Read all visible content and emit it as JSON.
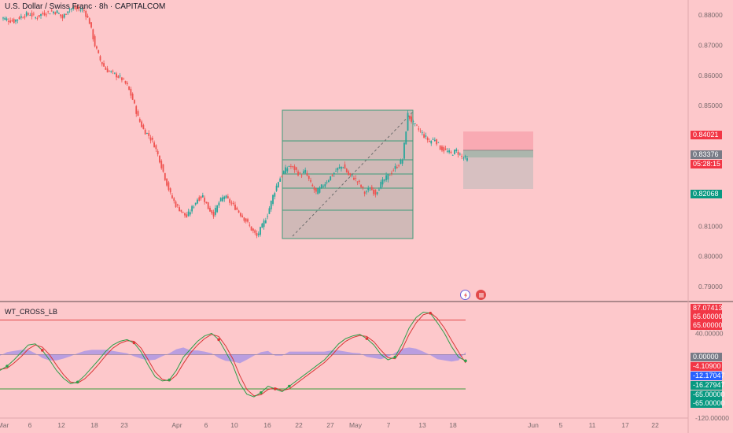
{
  "title": "U.S. Dollar / Swiss Franc · 8h · CAPITALCOM",
  "indicator_name": "WT_CROSS_LB",
  "colors": {
    "background": "#FDC8CB",
    "up": "#26A69A",
    "down": "#EF5350",
    "wt1": "#2E9E4A",
    "wt2": "#D93636",
    "hist": "#9B8BE8",
    "ob_line": "#E24A4A",
    "os_line": "#3E9B3E",
    "zone_gray": "#9AA6A0",
    "sl_zone": "#F4A7B0",
    "tp_zone": "#C9BDBE"
  },
  "price_axis": {
    "ticks": [
      "0.88000",
      "0.87000",
      "0.86000",
      "0.85000",
      "0.81000",
      "0.80000",
      "0.79000"
    ],
    "badges": [
      {
        "label": "0.84021",
        "color": "#F23645"
      },
      {
        "label": "0.83376",
        "color": "#787B86"
      },
      {
        "label": "05:28:15",
        "color": "#F23645"
      },
      {
        "label": "0.82068",
        "color": "#089981"
      }
    ]
  },
  "indicator_axis": {
    "ticks": [
      "40.00000",
      "-120.00000"
    ],
    "badges": [
      {
        "label": "87.07413",
        "color": "#F23645"
      },
      {
        "label": "65.00000",
        "color": "#F23645"
      },
      {
        "label": "65.00000",
        "color": "#F23645"
      },
      {
        "label": "0.00000",
        "color": "#787B86"
      },
      {
        "label": "-4.10900",
        "color": "#F23645"
      },
      {
        "label": "-12.17047",
        "color": "#2962FF"
      },
      {
        "label": "-16.27947",
        "color": "#089981"
      },
      {
        "label": "-65.00000",
        "color": "#089981"
      },
      {
        "label": "-65.00000",
        "color": "#089981"
      }
    ]
  },
  "time_axis": {
    "ticks": [
      "Mar",
      "6",
      "12",
      "18",
      "23",
      "Apr",
      "6",
      "10",
      "16",
      "22",
      "27",
      "May",
      "7",
      "13",
      "18",
      "Jun",
      "5",
      "11",
      "17",
      "22"
    ]
  },
  "icons": [
    "flash-icon",
    "flag-icon"
  ],
  "chart_data": {
    "type": "candlestick",
    "title": "U.S. Dollar / Swiss Franc · 8h · CAPITALCOM",
    "price_range": [
      0.785,
      0.885
    ],
    "series": [
      {
        "name": "USDCHF",
        "close_path": [
          0.879,
          0.8783,
          0.878,
          0.8792,
          0.88,
          0.8804,
          0.8791,
          0.8802,
          0.8808,
          0.8812,
          0.881,
          0.879,
          0.8818,
          0.8823,
          0.882,
          0.8815,
          0.8776,
          0.87,
          0.865,
          0.862,
          0.861,
          0.86,
          0.8588,
          0.8565,
          0.852,
          0.846,
          0.842,
          0.84,
          0.837,
          0.832,
          0.826,
          0.8205,
          0.817,
          0.815,
          0.813,
          0.816,
          0.819,
          0.82,
          0.816,
          0.814,
          0.8178,
          0.82,
          0.818,
          0.8162,
          0.814,
          0.8118,
          0.809,
          0.8066,
          0.81,
          0.814,
          0.82,
          0.825,
          0.828,
          0.83,
          0.829,
          0.827,
          0.828,
          0.824,
          0.821,
          0.823,
          0.825,
          0.827,
          0.829,
          0.83,
          0.827,
          0.826,
          0.824,
          0.821,
          0.8225,
          0.821,
          0.824,
          0.826,
          0.828,
          0.83,
          0.832,
          0.847,
          0.844,
          0.842,
          0.84,
          0.838,
          0.839,
          0.836,
          0.835,
          0.834,
          0.835,
          0.833,
          0.832
        ]
      }
    ],
    "key_levels": {
      "stop_loss": 0.84021,
      "entry": 0.83376,
      "take_profit": 0.82068
    },
    "indicator": {
      "name": "WT_CROSS_LB",
      "overbought": 65,
      "oversold": -65,
      "current": {
        "wt1": -12.17047,
        "wt2": -16.27947,
        "diff": -4.109,
        "max": 87.07413
      },
      "wt1": [
        -30,
        -22,
        -10,
        4,
        18,
        20,
        8,
        -10,
        -30,
        -45,
        -55,
        -52,
        -40,
        -25,
        -10,
        6,
        18,
        25,
        28,
        22,
        5,
        -20,
        -42,
        -50,
        -48,
        -30,
        -5,
        10,
        25,
        35,
        40,
        28,
        5,
        -20,
        -55,
        -75,
        -80,
        -72,
        -60,
        -65,
        -70,
        -60,
        -50,
        -40,
        -30,
        -20,
        -10,
        5,
        20,
        30,
        35,
        38,
        30,
        18,
        0,
        -10,
        -5,
        20,
        50,
        70,
        80,
        78,
        60,
        40,
        15,
        -5,
        -12
      ],
      "wt2": [
        -28,
        -26,
        -16,
        -4,
        10,
        18,
        14,
        0,
        -20,
        -38,
        -52,
        -54,
        -46,
        -33,
        -18,
        -2,
        12,
        21,
        26,
        25,
        12,
        -10,
        -33,
        -47,
        -50,
        -39,
        -17,
        3,
        18,
        30,
        38,
        34,
        16,
        -8,
        -40,
        -66,
        -78,
        -76,
        -66,
        -63,
        -68,
        -65,
        -55,
        -45,
        -35,
        -25,
        -15,
        -2,
        13,
        25,
        32,
        36,
        34,
        24,
        8,
        -6,
        -8,
        10,
        38,
        60,
        75,
        79,
        68,
        50,
        27,
        5,
        -16
      ]
    }
  }
}
